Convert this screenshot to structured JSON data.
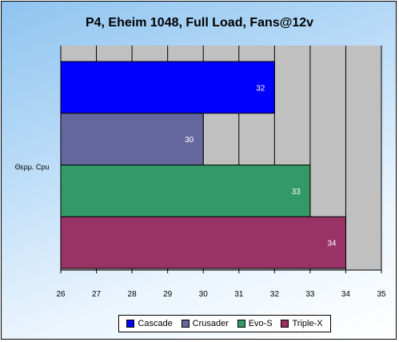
{
  "chart_data": {
    "type": "bar",
    "orientation": "horizontal",
    "title": "P4, Eheim 1048, Full Load, Fans@12v",
    "categories": [
      "Θερμ. Cpu"
    ],
    "series": [
      {
        "name": "Cascade",
        "values": [
          32
        ],
        "color": "#0000ff"
      },
      {
        "name": "Crusader",
        "values": [
          30
        ],
        "color": "#66669e"
      },
      {
        "name": "Evo-S",
        "values": [
          33
        ],
        "color": "#339966"
      },
      {
        "name": "Triple-X",
        "values": [
          34
        ],
        "color": "#993366"
      }
    ],
    "xlim": [
      26,
      35
    ],
    "xticks": [
      "26",
      "27",
      "28",
      "29",
      "30",
      "31",
      "32",
      "33",
      "34",
      "35"
    ],
    "data_labels": [
      "32",
      "30",
      "33",
      "34"
    ],
    "grid": true,
    "plot_background": "#c0c0c0",
    "legend_position": "bottom"
  },
  "legend": [
    "Cascade",
    "Crusader",
    "Evo-S",
    "Triple-X"
  ]
}
